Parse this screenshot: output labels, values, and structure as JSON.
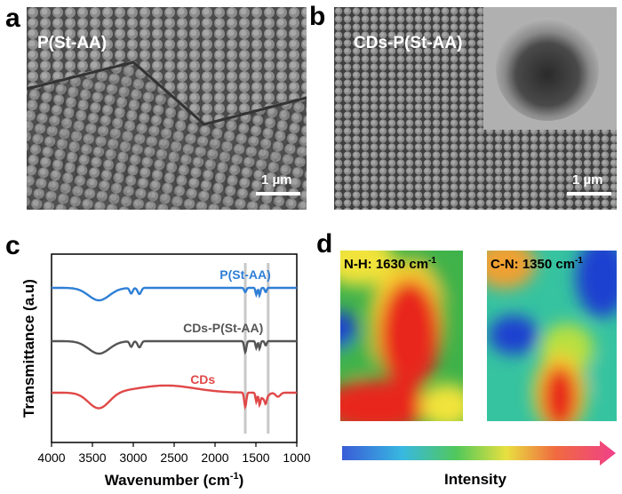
{
  "panels": {
    "a": {
      "letter": "a",
      "label": "P(St-AA)",
      "scale": "1 µm"
    },
    "b": {
      "letter": "b",
      "label": "CDs-P(St-AA)",
      "scale": "1 µm"
    },
    "c": {
      "letter": "c"
    },
    "d": {
      "letter": "d"
    }
  },
  "chart_data": {
    "type": "line",
    "title": "",
    "xlabel": "Wavenumber (cm",
    "xlabel_sup": "-1",
    "xlabel_end": ")",
    "ylabel": "Transmittance (a.u)",
    "xlim": [
      4000,
      1000
    ],
    "x_ticks": [
      "4000",
      "3500",
      "3000",
      "2500",
      "2000",
      "1500",
      "1000"
    ],
    "x_tick_values": [
      4000,
      3500,
      3000,
      2500,
      2000,
      1500,
      1000
    ],
    "vertical_markers": [
      1630,
      1350
    ],
    "series": [
      {
        "name": "P(St-AA)",
        "color": "#2f7fd6",
        "label_at": 1630
      },
      {
        "name": "CDs-P(St-AA)",
        "color": "#555555",
        "label_at": 1900
      },
      {
        "name": "CDs",
        "color": "#e04848",
        "label_at": 2150
      }
    ]
  },
  "maps": {
    "left": {
      "label": "N-H: 1630 cm",
      "sup": "-1"
    },
    "right": {
      "label": "C-N: 1350 cm",
      "sup": "-1"
    },
    "intensity_label": "Intensity"
  }
}
